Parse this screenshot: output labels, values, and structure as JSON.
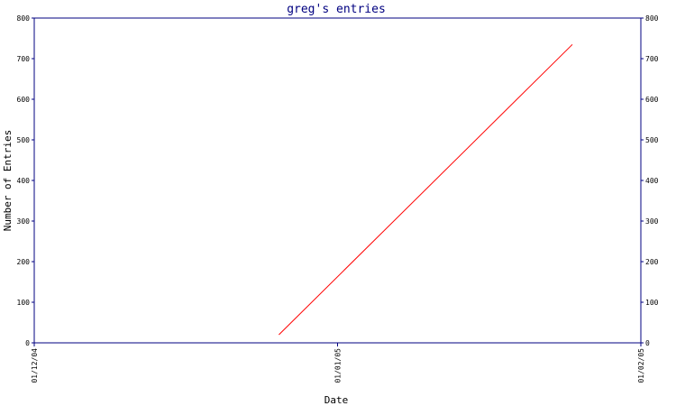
{
  "chart_data": {
    "type": "line",
    "title": "greg's entries",
    "xlabel": "Date",
    "ylabel": "Number of Entries",
    "x_tick_labels": [
      "01/12/04",
      "01/01/05",
      "01/02/05"
    ],
    "y_ticks": [
      0,
      100,
      200,
      300,
      400,
      500,
      600,
      700,
      800
    ],
    "ylim": [
      0,
      800
    ],
    "grid": false,
    "mirror_y_axis_right": true,
    "series": [
      {
        "color": "#ff0000",
        "x": [
          "2004-12-26",
          "2005-01-25"
        ],
        "y": [
          20,
          735
        ]
      }
    ],
    "axis_color": "#000080"
  }
}
